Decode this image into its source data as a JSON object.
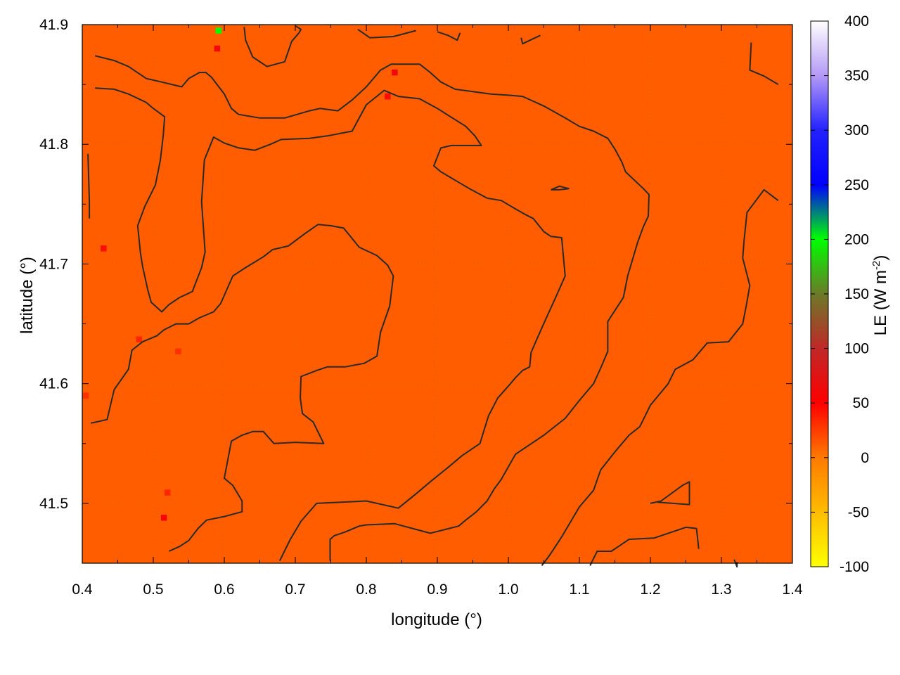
{
  "chart_data": {
    "type": "heatmap",
    "title": "",
    "xlabel": "longitude (°)",
    "ylabel": "latitude (°)",
    "xlim": [
      0.4,
      1.4
    ],
    "ylim": [
      41.45,
      41.9
    ],
    "xticks": [
      "0.4",
      "0.5",
      "0.6",
      "0.7",
      "0.8",
      "0.9",
      "1.0",
      "1.1",
      "1.2",
      "1.3",
      "1.4"
    ],
    "yticks": [
      "41.5",
      "41.6",
      "41.7",
      "41.8",
      "41.9"
    ],
    "grid": true,
    "colorbar": {
      "label": "LE (W m",
      "label_sup": "-2",
      "label_close": ")",
      "range": [
        -100,
        400
      ],
      "ticks": [
        "-100",
        "-50",
        "0",
        "50",
        "100",
        "150",
        "200",
        "250",
        "300",
        "350",
        "400"
      ],
      "colormap": [
        {
          "value": -100,
          "color": "#ffff00"
        },
        {
          "value": 0,
          "color": "#ff7a00"
        },
        {
          "value": 50,
          "color": "#ff0000"
        },
        {
          "value": 100,
          "color": "#c02828"
        },
        {
          "value": 150,
          "color": "#6b7a28"
        },
        {
          "value": 200,
          "color": "#00ff00"
        },
        {
          "value": 250,
          "color": "#0000ff"
        },
        {
          "value": 300,
          "color": "#2222ff"
        },
        {
          "value": 350,
          "color": "#b499f5"
        },
        {
          "value": 400,
          "color": "#ffffff"
        }
      ]
    },
    "field": {
      "background_value": 12,
      "hotspots": [
        {
          "lon": 0.59,
          "lat": 41.88,
          "value": 60
        },
        {
          "lon": 0.592,
          "lat": 41.895,
          "value": 200
        },
        {
          "lon": 0.84,
          "lat": 41.86,
          "value": 60
        },
        {
          "lon": 0.83,
          "lat": 41.84,
          "value": 45
        },
        {
          "lon": 0.43,
          "lat": 41.713,
          "value": 45
        },
        {
          "lon": 0.48,
          "lat": 41.637,
          "value": 35
        },
        {
          "lon": 0.535,
          "lat": 41.627,
          "value": 30
        },
        {
          "lon": 0.405,
          "lat": 41.59,
          "value": 30
        },
        {
          "lon": 0.515,
          "lat": 41.488,
          "value": 55
        },
        {
          "lon": 0.52,
          "lat": 41.509,
          "value": 35
        }
      ]
    },
    "contours": [
      [
        [
          0.418,
          41.874
        ],
        [
          0.445,
          41.87
        ],
        [
          0.465,
          41.865
        ],
        [
          0.49,
          41.855
        ],
        [
          0.512,
          41.852
        ],
        [
          0.54,
          41.848
        ],
        [
          0.55,
          41.855
        ],
        [
          0.565,
          41.86
        ],
        [
          0.574,
          41.86
        ],
        [
          0.582,
          41.856
        ],
        [
          0.6,
          41.842
        ],
        [
          0.61,
          41.83
        ],
        [
          0.62,
          41.825
        ],
        [
          0.65,
          41.822
        ],
        [
          0.685,
          41.822
        ],
        [
          0.72,
          41.828
        ],
        [
          0.735,
          41.83
        ],
        [
          0.76,
          41.828
        ],
        [
          0.78,
          41.837
        ],
        [
          0.8,
          41.848
        ],
        [
          0.82,
          41.862
        ],
        [
          0.835,
          41.867
        ],
        [
          0.875,
          41.867
        ],
        [
          0.89,
          41.86
        ],
        [
          0.905,
          41.852
        ],
        [
          0.925,
          41.846
        ],
        [
          0.95,
          41.844
        ],
        [
          0.975,
          41.842
        ],
        [
          1.0,
          41.841
        ],
        [
          1.02,
          41.84
        ],
        [
          1.05,
          41.832
        ],
        [
          1.08,
          41.822
        ],
        [
          1.1,
          41.815
        ],
        [
          1.12,
          41.811
        ],
        [
          1.14,
          41.805
        ],
        [
          1.15,
          41.796
        ],
        [
          1.16,
          41.785
        ],
        [
          1.165,
          41.777
        ],
        [
          1.19,
          41.763
        ],
        [
          1.198,
          41.758
        ],
        [
          1.197,
          41.74
        ],
        [
          1.19,
          41.731
        ],
        [
          1.182,
          41.718
        ],
        [
          1.168,
          41.69
        ],
        [
          1.162,
          41.672
        ],
        [
          1.14,
          41.652
        ],
        [
          1.14,
          41.627
        ],
        [
          1.13,
          41.613
        ],
        [
          1.12,
          41.6
        ],
        [
          1.1,
          41.586
        ],
        [
          1.08,
          41.571
        ],
        [
          1.05,
          41.557
        ],
        [
          1.01,
          41.541
        ],
        [
          0.99,
          41.52
        ],
        [
          0.98,
          41.512
        ],
        [
          0.97,
          41.502
        ],
        [
          0.955,
          41.493
        ],
        [
          0.94,
          41.486
        ],
        [
          0.93,
          41.481
        ],
        [
          0.91,
          41.478
        ],
        [
          0.89,
          41.475
        ],
        [
          0.84,
          41.483
        ],
        [
          0.8,
          41.482
        ],
        [
          0.79,
          41.481
        ],
        [
          0.77,
          41.476
        ],
        [
          0.755,
          41.473
        ],
        [
          0.749,
          41.47
        ],
        [
          0.749,
          41.452
        ]
      ],
      [
        [
          0.418,
          41.847
        ],
        [
          0.445,
          41.846
        ],
        [
          0.465,
          41.842
        ],
        [
          0.49,
          41.835
        ],
        [
          0.5,
          41.83
        ],
        [
          0.516,
          41.823
        ],
        [
          0.514,
          41.807
        ],
        [
          0.51,
          41.787
        ],
        [
          0.503,
          41.766
        ],
        [
          0.488,
          41.748
        ],
        [
          0.478,
          41.732
        ],
        [
          0.482,
          41.709
        ],
        [
          0.485,
          41.698
        ],
        [
          0.492,
          41.679
        ],
        [
          0.497,
          41.668
        ],
        [
          0.512,
          41.66
        ],
        [
          0.522,
          41.666
        ],
        [
          0.537,
          41.672
        ],
        [
          0.555,
          41.677
        ],
        [
          0.568,
          41.697
        ],
        [
          0.573,
          41.71
        ],
        [
          0.568,
          41.752
        ],
        [
          0.572,
          41.787
        ],
        [
          0.585,
          41.806
        ],
        [
          0.6,
          41.801
        ],
        [
          0.62,
          41.797
        ],
        [
          0.643,
          41.795
        ],
        [
          0.665,
          41.8
        ],
        [
          0.68,
          41.804
        ],
        [
          0.72,
          41.805
        ],
        [
          0.745,
          41.807
        ],
        [
          0.78,
          41.811
        ],
        [
          0.8,
          41.833
        ],
        [
          0.825,
          41.845
        ],
        [
          0.845,
          41.84
        ],
        [
          0.875,
          41.838
        ],
        [
          0.9,
          41.83
        ],
        [
          0.94,
          41.815
        ],
        [
          0.953,
          41.807
        ],
        [
          0.962,
          41.799
        ],
        [
          0.945,
          41.799
        ],
        [
          0.92,
          41.799
        ],
        [
          0.905,
          41.797
        ],
        [
          0.895,
          41.782
        ],
        [
          0.905,
          41.777
        ],
        [
          0.925,
          41.77
        ],
        [
          0.945,
          41.763
        ],
        [
          0.97,
          41.755
        ],
        [
          0.99,
          41.753
        ],
        [
          1.01,
          41.746
        ],
        [
          1.025,
          41.741
        ],
        [
          1.035,
          41.738
        ],
        [
          1.05,
          41.727
        ],
        [
          1.06,
          41.723
        ],
        [
          1.075,
          41.722
        ],
        [
          1.08,
          41.69
        ],
        [
          1.065,
          41.67
        ],
        [
          1.052,
          41.653
        ],
        [
          1.04,
          41.637
        ],
        [
          1.032,
          41.626
        ],
        [
          1.03,
          41.614
        ],
        [
          1.02,
          41.611
        ],
        [
          1.01,
          41.605
        ],
        [
          1.0,
          41.598
        ],
        [
          0.985,
          41.588
        ],
        [
          0.972,
          41.573
        ],
        [
          0.96,
          41.55
        ],
        [
          0.935,
          41.54
        ],
        [
          0.915,
          41.53
        ],
        [
          0.89,
          41.518
        ],
        [
          0.87,
          41.508
        ],
        [
          0.845,
          41.496
        ],
        [
          0.8,
          41.502
        ],
        [
          0.73,
          41.5
        ],
        [
          0.708,
          41.485
        ],
        [
          0.693,
          41.47
        ],
        [
          0.678,
          41.452
        ]
      ],
      [
        [
          0.412,
          41.567
        ],
        [
          0.42,
          41.568
        ],
        [
          0.435,
          41.57
        ],
        [
          0.445,
          41.595
        ],
        [
          0.465,
          41.612
        ],
        [
          0.47,
          41.628
        ],
        [
          0.485,
          41.635
        ],
        [
          0.505,
          41.64
        ],
        [
          0.515,
          41.645
        ],
        [
          0.532,
          41.65
        ],
        [
          0.55,
          41.65
        ],
        [
          0.565,
          41.655
        ],
        [
          0.585,
          41.66
        ],
        [
          0.595,
          41.667
        ],
        [
          0.612,
          41.69
        ],
        [
          0.63,
          41.697
        ],
        [
          0.655,
          41.706
        ],
        [
          0.668,
          41.712
        ],
        [
          0.69,
          41.715
        ],
        [
          0.715,
          41.726
        ],
        [
          0.732,
          41.733
        ],
        [
          0.75,
          41.732
        ],
        [
          0.768,
          41.73
        ],
        [
          0.79,
          41.714
        ],
        [
          0.815,
          41.707
        ],
        [
          0.83,
          41.699
        ],
        [
          0.838,
          41.69
        ],
        [
          0.833,
          41.665
        ],
        [
          0.82,
          41.643
        ],
        [
          0.815,
          41.623
        ],
        [
          0.797,
          41.617
        ],
        [
          0.77,
          41.614
        ],
        [
          0.745,
          41.614
        ],
        [
          0.73,
          41.611
        ],
        [
          0.708,
          41.606
        ],
        [
          0.707,
          41.588
        ],
        [
          0.71,
          41.575
        ],
        [
          0.725,
          41.568
        ],
        [
          0.74,
          41.55
        ],
        [
          0.7,
          41.551
        ],
        [
          0.67,
          41.55
        ],
        [
          0.655,
          41.56
        ],
        [
          0.64,
          41.56
        ],
        [
          0.625,
          41.557
        ],
        [
          0.61,
          41.552
        ],
        [
          0.6,
          41.521
        ],
        [
          0.612,
          41.515
        ],
        [
          0.625,
          41.502
        ],
        [
          0.625,
          41.493
        ],
        [
          0.6,
          41.489
        ],
        [
          0.575,
          41.486
        ],
        [
          0.563,
          41.479
        ],
        [
          0.55,
          41.469
        ],
        [
          0.537,
          41.464
        ],
        [
          0.522,
          41.46
        ]
      ],
      [
        [
          0.408,
          41.792
        ],
        [
          0.41,
          41.752
        ],
        [
          0.41,
          41.738
        ]
      ],
      [
        [
          0.628,
          41.898
        ],
        [
          0.63,
          41.887
        ],
        [
          0.64,
          41.873
        ],
        [
          0.66,
          41.865
        ],
        [
          0.685,
          41.869
        ],
        [
          0.695,
          41.886
        ],
        [
          0.705,
          41.893
        ],
        [
          0.708,
          41.896
        ],
        [
          0.7,
          41.899
        ]
      ],
      [
        [
          0.788,
          41.896
        ],
        [
          0.805,
          41.889
        ],
        [
          0.838,
          41.89
        ],
        [
          0.87,
          41.895
        ]
      ],
      [
        [
          0.9,
          41.894
        ],
        [
          0.915,
          41.891
        ],
        [
          0.928,
          41.887
        ],
        [
          0.932,
          41.893
        ]
      ],
      [
        [
          1.018,
          41.889
        ],
        [
          1.02,
          41.884
        ],
        [
          1.045,
          41.891
        ]
      ],
      [
        [
          1.342,
          41.885
        ],
        [
          1.34,
          41.862
        ],
        [
          1.36,
          41.857
        ],
        [
          1.38,
          41.85
        ]
      ],
      [
        [
          1.06,
          41.762
        ],
        [
          1.072,
          41.765
        ],
        [
          1.085,
          41.763
        ],
        [
          1.072,
          41.762
        ],
        [
          1.06,
          41.762
        ]
      ],
      [
        [
          1.38,
          41.753
        ],
        [
          1.36,
          41.762
        ],
        [
          1.336,
          41.743
        ],
        [
          1.332,
          41.72
        ],
        [
          1.33,
          41.705
        ],
        [
          1.34,
          41.682
        ],
        [
          1.335,
          41.665
        ],
        [
          1.33,
          41.65
        ],
        [
          1.31,
          41.635
        ],
        [
          1.28,
          41.634
        ],
        [
          1.26,
          41.62
        ],
        [
          1.235,
          41.612
        ],
        [
          1.225,
          41.6
        ],
        [
          1.2,
          41.582
        ],
        [
          1.185,
          41.564
        ],
        [
          1.17,
          41.557
        ],
        [
          1.15,
          41.543
        ],
        [
          1.13,
          41.528
        ],
        [
          1.12,
          41.511
        ],
        [
          1.1,
          41.497
        ],
        [
          1.075,
          41.472
        ],
        [
          1.063,
          41.461
        ],
        [
          1.056,
          41.455
        ],
        [
          1.047,
          41.448
        ]
      ],
      [
        [
          1.115,
          41.448
        ],
        [
          1.125,
          41.46
        ],
        [
          1.145,
          41.46
        ],
        [
          1.16,
          41.466
        ],
        [
          1.17,
          41.47
        ],
        [
          1.205,
          41.471
        ],
        [
          1.25,
          41.48
        ],
        [
          1.265,
          41.479
        ],
        [
          1.268,
          41.462
        ]
      ],
      [
        [
          1.2,
          41.5
        ],
        [
          1.215,
          41.502
        ],
        [
          1.245,
          41.515
        ],
        [
          1.255,
          41.518
        ],
        [
          1.255,
          41.499
        ],
        [
          1.21,
          41.501
        ]
      ],
      [
        [
          1.318,
          41.453
        ],
        [
          1.322,
          41.447
        ],
        [
          1.322,
          41.451
        ]
      ]
    ]
  }
}
